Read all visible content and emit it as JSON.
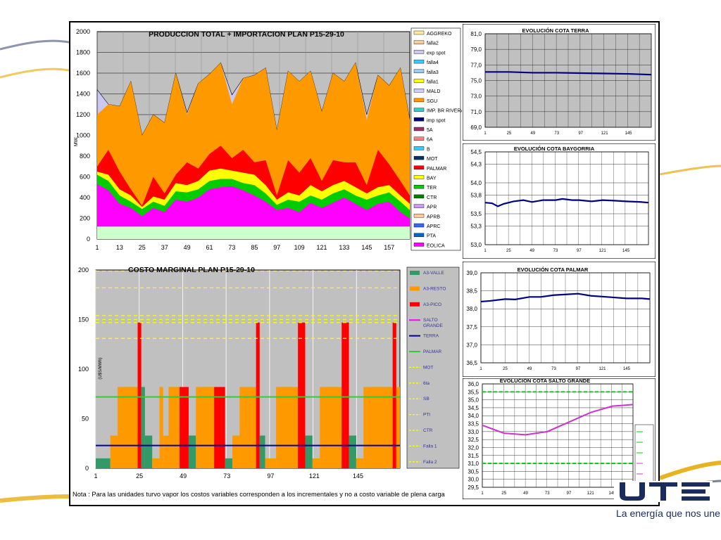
{
  "brand": {
    "logo_text": "UTE",
    "slogan": "La energía que nos une",
    "colors": {
      "navy": "#1a2c5b",
      "gold": "#e8b321"
    }
  },
  "note": "Nota : Para las unidades turvo vapor los costos variables corresponden a los incrementales y no a costo variable de plena carga",
  "charts": [
    {
      "id": "produccion",
      "title": "PRODUCCION TOTAL + IMPORTACION PLAN   P15-29-10",
      "ylabel": "MW",
      "y_ticks": [
        "0",
        "200",
        "400",
        "600",
        "800",
        "1000",
        "1200",
        "1400",
        "1600",
        "1800",
        "2000"
      ],
      "x_ticks": [
        "1",
        "13",
        "25",
        "37",
        "49",
        "61",
        "73",
        "85",
        "97",
        "109",
        "121",
        "133",
        "145",
        "157"
      ],
      "legend": [
        "AGGREKO",
        "falla2",
        "exp spot",
        "falla4",
        "falla3",
        "falla1",
        "MALD",
        "SGU",
        "IMP. BR RIVERA",
        "imp spot",
        "5A",
        "6A",
        "B",
        "MOT",
        "PALMAR",
        "BAY",
        "TER",
        "CTR",
        "APR",
        "APRB",
        "APRC",
        "PTA",
        "EOLICA"
      ]
    },
    {
      "id": "costo",
      "title": "COSTO MARGINAL PLAN   P15-29-10",
      "ylabel": "(U$S/MWh)",
      "y_ticks": [
        "0",
        "50",
        "100",
        "150",
        "200"
      ],
      "x_ticks": [
        "1",
        "25",
        "49",
        "73",
        "97",
        "121",
        "145"
      ],
      "legend": [
        "A3-VALLE",
        "A3-RESTO",
        "A3-PICO",
        "SALTO GRANDE",
        "TERRA",
        "PALMAR",
        "MOT",
        "6ta",
        "SB",
        "PTI",
        "CTR",
        "Falla 1",
        "Falla 2"
      ]
    },
    {
      "id": "terra",
      "title": "EVOLUCIÓN COTA TERRA",
      "y_ticks": [
        "69,0",
        "71,0",
        "73,0",
        "75,0",
        "77,0",
        "79,0",
        "81,0"
      ],
      "x_ticks": [
        "1",
        "25",
        "49",
        "73",
        "97",
        "121",
        "145"
      ]
    },
    {
      "id": "baygorria",
      "title": "EVOLUCIÓN COTA BAYGORRIA",
      "y_ticks": [
        "53,0",
        "53,3",
        "53,5",
        "53,8",
        "54,0",
        "54,3",
        "54,5"
      ],
      "x_ticks": [
        "1",
        "25",
        "49",
        "73",
        "97",
        "121",
        "145"
      ]
    },
    {
      "id": "palmar",
      "title": "EVOLUCIÓN COTA PALMAR",
      "y_ticks": [
        "36,5",
        "37,0",
        "37,5",
        "38,0",
        "38,5",
        "39,0"
      ],
      "x_ticks": [
        "1",
        "25",
        "49",
        "73",
        "97",
        "121",
        "145"
      ]
    },
    {
      "id": "saltogrande",
      "title": "EVOLUCIÓN COTA SALTO GRANDE",
      "y_ticks": [
        "29,5",
        "30,0",
        "30,5",
        "31,0",
        "31,5",
        "32,0",
        "32,5",
        "33,0",
        "33,5",
        "34,0",
        "34,5",
        "35,0",
        "35,5",
        "36,0"
      ],
      "x_ticks": [
        "1",
        "25",
        "49",
        "73",
        "97",
        "121",
        "145"
      ]
    }
  ],
  "chart_data": [
    {
      "type": "area",
      "title": "PRODUCCION TOTAL + IMPORTACION PLAN   P15-29-10",
      "ylabel": "MW",
      "ylim": [
        0,
        2000
      ],
      "x": [
        1,
        7,
        13,
        19,
        25,
        31,
        37,
        43,
        49,
        55,
        61,
        67,
        73,
        79,
        85,
        91,
        97,
        103,
        109,
        115,
        121,
        127,
        133,
        139,
        145,
        151,
        157,
        163,
        168
      ],
      "series": [
        {
          "name": "EOLICA",
          "color": "#ff00ff",
          "values": [
            530,
            470,
            340,
            300,
            220,
            300,
            260,
            380,
            360,
            400,
            480,
            500,
            510,
            470,
            420,
            360,
            280,
            300,
            260,
            350,
            300,
            350,
            400,
            340,
            280,
            340,
            360,
            260,
            200
          ]
        },
        {
          "name": "TER",
          "color": "#00cc00",
          "values": [
            620,
            560,
            420,
            360,
            290,
            360,
            320,
            460,
            450,
            480,
            560,
            580,
            580,
            540,
            520,
            440,
            330,
            380,
            360,
            420,
            380,
            440,
            480,
            420,
            380,
            420,
            450,
            360,
            280
          ]
        },
        {
          "name": "BAY",
          "color": "#ffff00",
          "values": [
            650,
            620,
            480,
            420,
            310,
            410,
            380,
            540,
            520,
            560,
            660,
            680,
            660,
            640,
            620,
            520,
            380,
            450,
            420,
            520,
            460,
            520,
            560,
            500,
            440,
            500,
            520,
            420,
            340
          ]
        },
        {
          "name": "PALMAR",
          "color": "#ff0000",
          "values": [
            700,
            860,
            650,
            480,
            320,
            600,
            440,
            620,
            740,
            680,
            820,
            900,
            780,
            860,
            740,
            760,
            420,
            760,
            640,
            780,
            560,
            760,
            740,
            740,
            520,
            860,
            720,
            560,
            420
          ]
        },
        {
          "name": "SGU",
          "color": "#ff9900",
          "values": [
            1200,
            1300,
            1280,
            1520,
            1000,
            1200,
            1120,
            1600,
            1200,
            1500,
            1590,
            1700,
            1300,
            1550,
            1580,
            1650,
            1050,
            1620,
            1520,
            1620,
            1230,
            1600,
            1520,
            1700,
            1150,
            1580,
            1480,
            1650,
            1150
          ]
        },
        {
          "name": "exp spot",
          "color": "#c8c8f0",
          "values": [
            1440,
            1300,
            1280,
            1520,
            1000,
            1200,
            1120,
            1600,
            1220,
            1500,
            1590,
            1700,
            1390,
            1550,
            1580,
            1650,
            1050,
            1620,
            1520,
            1620,
            1230,
            1600,
            1520,
            1700,
            1200,
            1580,
            1480,
            1650,
            1150
          ]
        },
        {
          "name": "PTA",
          "color": "#ccffcc",
          "values": [
            120,
            120,
            120,
            120,
            120,
            120,
            120,
            120,
            120,
            120,
            120,
            120,
            120,
            120,
            120,
            120,
            120,
            120,
            120,
            120,
            120,
            120,
            120,
            120,
            120,
            120,
            120,
            120,
            120
          ]
        }
      ]
    },
    {
      "type": "bar",
      "title": "COSTO MARGINAL PLAN   P15-29-10",
      "ylabel": "(U$S/MWh)",
      "ylim": [
        0,
        200
      ],
      "x_range": [
        1,
        168
      ],
      "steps": [
        {
          "x0": 1,
          "x1": 9,
          "v": 10,
          "c": "#339966"
        },
        {
          "x0": 9,
          "x1": 13,
          "v": 33,
          "c": "#ff9900"
        },
        {
          "x0": 13,
          "x1": 24,
          "v": 82,
          "c": "#ff9900"
        },
        {
          "x0": 24,
          "x1": 26,
          "v": 147,
          "c": "#ff0000"
        },
        {
          "x0": 26,
          "x1": 28,
          "v": 82,
          "c": "#339966"
        },
        {
          "x0": 28,
          "x1": 32,
          "v": 33,
          "c": "#339966"
        },
        {
          "x0": 32,
          "x1": 36,
          "v": 10,
          "c": "#ff9900"
        },
        {
          "x0": 36,
          "x1": 38,
          "v": 82,
          "c": "#ff9900"
        },
        {
          "x0": 38,
          "x1": 41,
          "v": 33,
          "c": "#ff9900"
        },
        {
          "x0": 41,
          "x1": 47,
          "v": 82,
          "c": "#ff9900"
        },
        {
          "x0": 47,
          "x1": 52,
          "v": 82,
          "c": "#ff0000"
        },
        {
          "x0": 52,
          "x1": 56,
          "v": 33,
          "c": "#339966"
        },
        {
          "x0": 56,
          "x1": 66,
          "v": 82,
          "c": "#ff9900"
        },
        {
          "x0": 66,
          "x1": 72,
          "v": 82,
          "c": "#ff0000"
        },
        {
          "x0": 72,
          "x1": 76,
          "v": 10,
          "c": "#339966"
        },
        {
          "x0": 76,
          "x1": 80,
          "v": 33,
          "c": "#ff9900"
        },
        {
          "x0": 80,
          "x1": 89,
          "v": 82,
          "c": "#ff9900"
        },
        {
          "x0": 89,
          "x1": 91,
          "v": 147,
          "c": "#ff0000"
        },
        {
          "x0": 91,
          "x1": 94,
          "v": 33,
          "c": "#339966"
        },
        {
          "x0": 94,
          "x1": 100,
          "v": 10,
          "c": "#ff9900"
        },
        {
          "x0": 100,
          "x1": 112,
          "v": 82,
          "c": "#ff9900"
        },
        {
          "x0": 112,
          "x1": 116,
          "v": 147,
          "c": "#ff0000"
        },
        {
          "x0": 116,
          "x1": 120,
          "v": 33,
          "c": "#339966"
        },
        {
          "x0": 120,
          "x1": 124,
          "v": 10,
          "c": "#ff9900"
        },
        {
          "x0": 124,
          "x1": 136,
          "v": 82,
          "c": "#ff9900"
        },
        {
          "x0": 136,
          "x1": 140,
          "v": 147,
          "c": "#ff0000"
        },
        {
          "x0": 140,
          "x1": 144,
          "v": 33,
          "c": "#339966"
        },
        {
          "x0": 144,
          "x1": 148,
          "v": 10,
          "c": "#ff9900"
        },
        {
          "x0": 148,
          "x1": 164,
          "v": 82,
          "c": "#ff9900"
        },
        {
          "x0": 164,
          "x1": 166,
          "v": 147,
          "c": "#ff0000"
        },
        {
          "x0": 166,
          "x1": 168,
          "v": 82,
          "c": "#ff9900"
        }
      ],
      "lines": [
        {
          "name": "PALMAR",
          "color": "#33cc33",
          "value": 72
        },
        {
          "name": "TERRA",
          "color": "#000099",
          "value": 23
        }
      ],
      "dashed": [
        199,
        182,
        154,
        150,
        147,
        131
      ]
    },
    {
      "type": "line",
      "title": "EVOLUCIÓN COTA TERRA",
      "ylim": [
        69,
        81
      ],
      "x": [
        1,
        25,
        49,
        73,
        97,
        121,
        145,
        168
      ],
      "values": [
        76.1,
        76.1,
        76.0,
        76.0,
        75.95,
        75.9,
        75.85,
        75.75
      ]
    },
    {
      "type": "line",
      "title": "EVOLUCIÓN COTA BAYGORRIA",
      "ylim": [
        53.0,
        54.5
      ],
      "x": [
        1,
        8,
        14,
        20,
        25,
        30,
        40,
        49,
        60,
        73,
        80,
        90,
        97,
        110,
        121,
        135,
        145,
        160,
        168
      ],
      "values": [
        53.68,
        53.67,
        53.62,
        53.66,
        53.68,
        53.7,
        53.72,
        53.69,
        53.72,
        53.72,
        53.74,
        53.72,
        53.72,
        53.7,
        53.72,
        53.71,
        53.7,
        53.69,
        53.68
      ]
    },
    {
      "type": "line",
      "title": "EVOLUCIÓN COTA PALMAR",
      "ylim": [
        36.5,
        39.0
      ],
      "x": [
        1,
        10,
        25,
        35,
        49,
        60,
        73,
        85,
        97,
        110,
        121,
        135,
        145,
        160,
        168
      ],
      "values": [
        38.2,
        38.22,
        38.27,
        38.26,
        38.33,
        38.33,
        38.38,
        38.4,
        38.42,
        38.36,
        38.34,
        38.31,
        38.29,
        38.29,
        38.27
      ]
    },
    {
      "type": "line",
      "title": "EVOLUCIÓN COTA SALTO GRANDE",
      "ylim": [
        29.5,
        36.0
      ],
      "x": [
        1,
        25,
        49,
        73,
        97,
        121,
        145,
        168
      ],
      "values": [
        33.4,
        32.9,
        32.8,
        33.0,
        33.6,
        34.2,
        34.6,
        34.7
      ],
      "hlines": [
        {
          "value": 35.5,
          "color": "#00cc00"
        },
        {
          "value": 31.0,
          "color": "#00cc00"
        }
      ]
    }
  ]
}
